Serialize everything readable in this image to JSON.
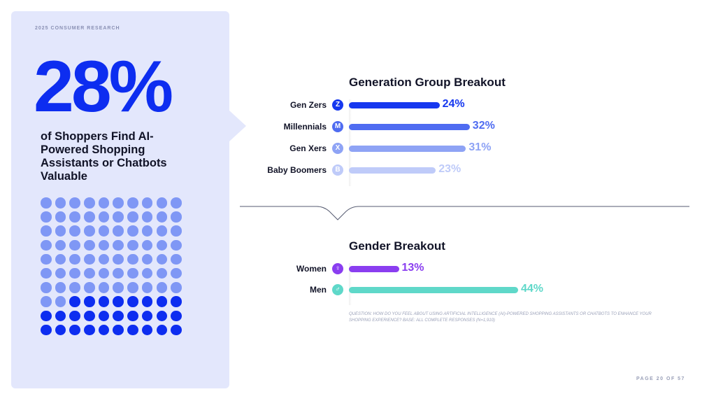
{
  "left_panel": {
    "eyebrow": "2025 CONSUMER RESEARCH",
    "big_stat": "28%",
    "headline": "of Shoppers Find AI-Powered Shopping Assistants or Chatbots Valuable",
    "dot_grid": {
      "total": 100,
      "highlighted": 28
    }
  },
  "colors": {
    "gen_z": "#1638ef",
    "millennials": "#4f6cf1",
    "gen_x": "#8ea3f5",
    "boomers": "#bfcbf9",
    "women": "#8a3ef0",
    "men": "#5fd8c9",
    "panel": "#e3e7fc",
    "accent": "#0d2df0"
  },
  "chart_data": [
    {
      "type": "bar",
      "orientation": "horizontal",
      "title": "Generation Group Breakout",
      "categories": [
        "Gen Zers",
        "Millennials",
        "Gen Xers",
        "Baby Boomers"
      ],
      "badges": [
        "Z",
        "M",
        "X",
        "B"
      ],
      "values": [
        24,
        32,
        31,
        23
      ],
      "value_labels": [
        "24%",
        "32%",
        "31%",
        "23%"
      ],
      "xlim": [
        0,
        100
      ]
    },
    {
      "type": "bar",
      "orientation": "horizontal",
      "title": "Gender Breakout",
      "categories": [
        "Women",
        "Men"
      ],
      "badges": [
        "♀",
        "♂"
      ],
      "values": [
        13,
        44
      ],
      "value_labels": [
        "13%",
        "44%"
      ],
      "xlim": [
        0,
        100
      ]
    }
  ],
  "footnote": "QUESTION: HOW DO YOU FEEL ABOUT USING ARTIFICIAL INTELLIGENCE (AI)-POWERED SHOPPING ASSISTANTS OR CHATBOTS TO ENHANCE YOUR SHOPPING EXPERIENCE? BASE: ALL COMPLETE RESPONSES (N=1,910)",
  "page_number": "PAGE 20 OF 57"
}
